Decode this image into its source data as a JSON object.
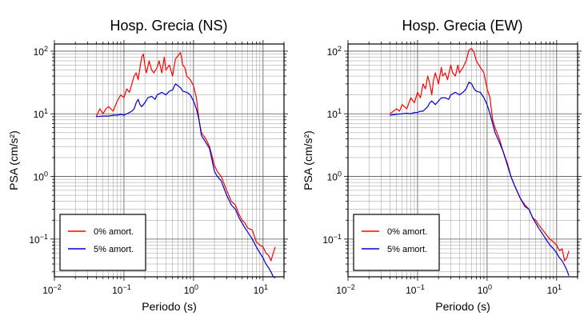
{
  "chart_data": [
    {
      "type": "line",
      "title": "Hosp. Grecia (NS)",
      "xlabel": "Periodo (s)",
      "ylabel": "PSA (cm/s²)",
      "x_scale": "log",
      "y_scale": "log",
      "xlim": [
        0.01,
        20
      ],
      "ylim": [
        0.025,
        130
      ],
      "grid": true,
      "legend_position": "bottom-left",
      "x_ticks": [
        {
          "value": 0.01,
          "base": "10",
          "exp": "−2"
        },
        {
          "value": 0.1,
          "base": "10",
          "exp": "−1"
        },
        {
          "value": 1,
          "base": "10",
          "exp": "0"
        },
        {
          "value": 10,
          "base": "10",
          "exp": "1"
        }
      ],
      "y_ticks": [
        {
          "value": 0.1,
          "base": "10",
          "exp": "−1"
        },
        {
          "value": 1,
          "base": "10",
          "exp": "0"
        },
        {
          "value": 10,
          "base": "10",
          "exp": "1"
        },
        {
          "value": 100,
          "base": "10",
          "exp": "2"
        }
      ],
      "series": [
        {
          "name": "0% amort.",
          "color": "#ff0000",
          "points": [
            [
              0.04,
              9
            ],
            [
              0.045,
              12
            ],
            [
              0.05,
              10
            ],
            [
              0.055,
              12
            ],
            [
              0.06,
              13
            ],
            [
              0.07,
              11
            ],
            [
              0.08,
              16
            ],
            [
              0.09,
              20
            ],
            [
              0.1,
              18
            ],
            [
              0.11,
              25
            ],
            [
              0.12,
              22
            ],
            [
              0.13,
              30
            ],
            [
              0.14,
              40
            ],
            [
              0.15,
              45
            ],
            [
              0.16,
              35
            ],
            [
              0.17,
              55
            ],
            [
              0.18,
              80
            ],
            [
              0.19,
              90
            ],
            [
              0.2,
              60
            ],
            [
              0.21,
              45
            ],
            [
              0.22,
              55
            ],
            [
              0.23,
              70
            ],
            [
              0.25,
              50
            ],
            [
              0.27,
              45
            ],
            [
              0.3,
              55
            ],
            [
              0.32,
              70
            ],
            [
              0.35,
              45
            ],
            [
              0.38,
              80
            ],
            [
              0.4,
              50
            ],
            [
              0.45,
              60
            ],
            [
              0.5,
              40
            ],
            [
              0.55,
              75
            ],
            [
              0.6,
              85
            ],
            [
              0.65,
              95
            ],
            [
              0.7,
              60
            ],
            [
              0.75,
              55
            ],
            [
              0.8,
              40
            ],
            [
              0.9,
              35
            ],
            [
              1.0,
              28
            ],
            [
              1.1,
              18
            ],
            [
              1.2,
              8
            ],
            [
              1.3,
              5
            ],
            [
              1.5,
              4
            ],
            [
              1.7,
              3
            ],
            [
              2.0,
              1.5
            ],
            [
              2.2,
              1.2
            ],
            [
              2.5,
              1.0
            ],
            [
              3.0,
              0.6
            ],
            [
              3.5,
              0.4
            ],
            [
              4.0,
              0.35
            ],
            [
              4.5,
              0.25
            ],
            [
              5.0,
              0.2
            ],
            [
              5.5,
              0.18
            ],
            [
              6.0,
              0.15
            ],
            [
              7.0,
              0.14
            ],
            [
              8.0,
              0.09
            ],
            [
              9.0,
              0.08
            ],
            [
              10.0,
              0.075
            ],
            [
              11.0,
              0.06
            ],
            [
              12.0,
              0.055
            ],
            [
              13.0,
              0.045
            ],
            [
              14.0,
              0.06
            ],
            [
              15.0,
              0.075
            ]
          ]
        },
        {
          "name": "5% amort.",
          "color": "#0000cc",
          "points": [
            [
              0.04,
              9
            ],
            [
              0.05,
              9.2
            ],
            [
              0.06,
              9.2
            ],
            [
              0.07,
              9.5
            ],
            [
              0.08,
              9.5
            ],
            [
              0.09,
              9.8
            ],
            [
              0.1,
              9.5
            ],
            [
              0.11,
              10
            ],
            [
              0.12,
              10.5
            ],
            [
              0.13,
              11
            ],
            [
              0.14,
              12
            ],
            [
              0.15,
              15
            ],
            [
              0.16,
              17
            ],
            [
              0.17,
              14
            ],
            [
              0.18,
              13
            ],
            [
              0.2,
              15
            ],
            [
              0.22,
              18
            ],
            [
              0.25,
              19
            ],
            [
              0.28,
              17
            ],
            [
              0.3,
              20
            ],
            [
              0.35,
              22
            ],
            [
              0.4,
              20
            ],
            [
              0.45,
              23
            ],
            [
              0.5,
              24
            ],
            [
              0.55,
              30
            ],
            [
              0.6,
              28
            ],
            [
              0.65,
              26
            ],
            [
              0.7,
              23
            ],
            [
              0.8,
              22
            ],
            [
              0.9,
              20
            ],
            [
              1.0,
              16
            ],
            [
              1.1,
              12
            ],
            [
              1.2,
              8
            ],
            [
              1.3,
              4.5
            ],
            [
              1.5,
              3.5
            ],
            [
              1.7,
              2.8
            ],
            [
              2.0,
              1.2
            ],
            [
              2.2,
              1.0
            ],
            [
              2.5,
              0.85
            ],
            [
              3.0,
              0.5
            ],
            [
              3.5,
              0.35
            ],
            [
              4.0,
              0.3
            ],
            [
              4.5,
              0.22
            ],
            [
              5.0,
              0.18
            ],
            [
              5.5,
              0.15
            ],
            [
              6.0,
              0.13
            ],
            [
              7.0,
              0.1
            ],
            [
              8.0,
              0.075
            ],
            [
              9.0,
              0.06
            ],
            [
              10.0,
              0.05
            ],
            [
              11.0,
              0.04
            ],
            [
              12.0,
              0.035
            ],
            [
              13.0,
              0.03
            ],
            [
              14.0,
              0.025
            ],
            [
              15.0,
              0.024
            ]
          ]
        }
      ]
    },
    {
      "type": "line",
      "title": "Hosp. Grecia (EW)",
      "xlabel": "Periodo (s)",
      "ylabel": "PSA (cm/s²)",
      "x_scale": "log",
      "y_scale": "log",
      "xlim": [
        0.01,
        20
      ],
      "ylim": [
        0.025,
        130
      ],
      "grid": true,
      "legend_position": "bottom-left",
      "x_ticks": [
        {
          "value": 0.01,
          "base": "10",
          "exp": "−2"
        },
        {
          "value": 0.1,
          "base": "10",
          "exp": "−1"
        },
        {
          "value": 1,
          "base": "10",
          "exp": "0"
        },
        {
          "value": 10,
          "base": "10",
          "exp": "1"
        }
      ],
      "y_ticks": [
        {
          "value": 0.1,
          "base": "10",
          "exp": "−1"
        },
        {
          "value": 1,
          "base": "10",
          "exp": "0"
        },
        {
          "value": 10,
          "base": "10",
          "exp": "1"
        },
        {
          "value": 100,
          "base": "10",
          "exp": "2"
        }
      ],
      "series": [
        {
          "name": "0% amort.",
          "color": "#ff0000",
          "points": [
            [
              0.04,
              10
            ],
            [
              0.045,
              11
            ],
            [
              0.05,
              12
            ],
            [
              0.055,
              11
            ],
            [
              0.06,
              14
            ],
            [
              0.07,
              12
            ],
            [
              0.08,
              18
            ],
            [
              0.09,
              15
            ],
            [
              0.1,
              22
            ],
            [
              0.11,
              18
            ],
            [
              0.12,
              30
            ],
            [
              0.13,
              25
            ],
            [
              0.14,
              40
            ],
            [
              0.15,
              30
            ],
            [
              0.16,
              20
            ],
            [
              0.17,
              35
            ],
            [
              0.18,
              45
            ],
            [
              0.2,
              30
            ],
            [
              0.22,
              55
            ],
            [
              0.23,
              40
            ],
            [
              0.25,
              45
            ],
            [
              0.27,
              35
            ],
            [
              0.3,
              60
            ],
            [
              0.32,
              45
            ],
            [
              0.35,
              40
            ],
            [
              0.38,
              60
            ],
            [
              0.4,
              45
            ],
            [
              0.45,
              55
            ],
            [
              0.5,
              70
            ],
            [
              0.55,
              105
            ],
            [
              0.6,
              110
            ],
            [
              0.65,
              95
            ],
            [
              0.7,
              70
            ],
            [
              0.8,
              55
            ],
            [
              0.9,
              45
            ],
            [
              1.0,
              25
            ],
            [
              1.1,
              18
            ],
            [
              1.2,
              8
            ],
            [
              1.3,
              6
            ],
            [
              1.5,
              4
            ],
            [
              1.7,
              2.5
            ],
            [
              2.0,
              1.5
            ],
            [
              2.2,
              1.0
            ],
            [
              2.5,
              0.7
            ],
            [
              3.0,
              0.45
            ],
            [
              3.5,
              0.35
            ],
            [
              4.0,
              0.3
            ],
            [
              4.5,
              0.22
            ],
            [
              5.0,
              0.2
            ],
            [
              5.5,
              0.17
            ],
            [
              6.0,
              0.15
            ],
            [
              7.0,
              0.12
            ],
            [
              8.0,
              0.1
            ],
            [
              9.0,
              0.09
            ],
            [
              10.0,
              0.08
            ],
            [
              11.0,
              0.065
            ],
            [
              12.0,
              0.07
            ],
            [
              13.0,
              0.045
            ],
            [
              14.0,
              0.05
            ],
            [
              15.0,
              0.065
            ]
          ]
        },
        {
          "name": "5% amort.",
          "color": "#0000cc",
          "points": [
            [
              0.04,
              9.5
            ],
            [
              0.05,
              9.8
            ],
            [
              0.06,
              10
            ],
            [
              0.07,
              10.2
            ],
            [
              0.08,
              10
            ],
            [
              0.09,
              10.5
            ],
            [
              0.1,
              10.5
            ],
            [
              0.11,
              11
            ],
            [
              0.12,
              11
            ],
            [
              0.13,
              12
            ],
            [
              0.14,
              13
            ],
            [
              0.15,
              15
            ],
            [
              0.16,
              16
            ],
            [
              0.17,
              15
            ],
            [
              0.18,
              14
            ],
            [
              0.2,
              16
            ],
            [
              0.22,
              18
            ],
            [
              0.25,
              18
            ],
            [
              0.28,
              17
            ],
            [
              0.3,
              20
            ],
            [
              0.35,
              22
            ],
            [
              0.4,
              20
            ],
            [
              0.45,
              22
            ],
            [
              0.5,
              25
            ],
            [
              0.55,
              32
            ],
            [
              0.6,
              30
            ],
            [
              0.65,
              25
            ],
            [
              0.7,
              23
            ],
            [
              0.8,
              22
            ],
            [
              0.9,
              18
            ],
            [
              1.0,
              14
            ],
            [
              1.1,
              10
            ],
            [
              1.2,
              7
            ],
            [
              1.3,
              5
            ],
            [
              1.5,
              3.5
            ],
            [
              1.7,
              2.5
            ],
            [
              2.0,
              1.4
            ],
            [
              2.2,
              1.0
            ],
            [
              2.5,
              0.7
            ],
            [
              3.0,
              0.45
            ],
            [
              3.5,
              0.33
            ],
            [
              4.0,
              0.3
            ],
            [
              4.5,
              0.22
            ],
            [
              5.0,
              0.18
            ],
            [
              5.5,
              0.15
            ],
            [
              6.0,
              0.13
            ],
            [
              7.0,
              0.1
            ],
            [
              8.0,
              0.08
            ],
            [
              9.0,
              0.07
            ],
            [
              10.0,
              0.06
            ],
            [
              11.0,
              0.05
            ],
            [
              12.0,
              0.045
            ],
            [
              13.0,
              0.038
            ],
            [
              14.0,
              0.032
            ],
            [
              15.0,
              0.026
            ]
          ]
        }
      ]
    }
  ]
}
